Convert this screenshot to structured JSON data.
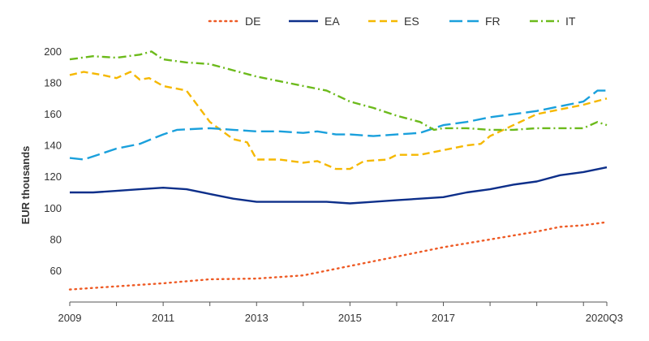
{
  "chart_data": {
    "type": "line",
    "title": "",
    "xlabel": "",
    "ylabel": "EUR thousands",
    "xlim": [
      2009,
      2020.5
    ],
    "ylim": [
      40,
      208
    ],
    "yticks": [
      60,
      80,
      100,
      120,
      140,
      160,
      180,
      200
    ],
    "xticks": [
      {
        "value": 2009,
        "label": "2009"
      },
      {
        "value": 2011,
        "label": "2011"
      },
      {
        "value": 2013,
        "label": "2013"
      },
      {
        "value": 2015,
        "label": "2015"
      },
      {
        "value": 2017,
        "label": "2017"
      },
      {
        "value": 2020.5,
        "label": "2020Q3"
      }
    ],
    "grid": false,
    "legend_position": "top",
    "series": [
      {
        "name": "DE",
        "color": "#ee5a24",
        "dash": "dotted",
        "points": [
          [
            2009,
            48
          ],
          [
            2010,
            50
          ],
          [
            2011,
            52
          ],
          [
            2012,
            54.5
          ],
          [
            2013,
            55
          ],
          [
            2014,
            57
          ],
          [
            2015,
            63
          ],
          [
            2016,
            69
          ],
          [
            2017,
            75
          ],
          [
            2018,
            80
          ],
          [
            2019,
            85
          ],
          [
            2019.5,
            88
          ],
          [
            2020,
            89
          ],
          [
            2020.5,
            91
          ]
        ]
      },
      {
        "name": "EA",
        "color": "#0d2f8a",
        "dash": "solid",
        "points": [
          [
            2009,
            110
          ],
          [
            2009.5,
            110
          ],
          [
            2010,
            111
          ],
          [
            2010.5,
            112
          ],
          [
            2011,
            113
          ],
          [
            2011.5,
            112
          ],
          [
            2012,
            109
          ],
          [
            2012.5,
            106
          ],
          [
            2013,
            104
          ],
          [
            2013.5,
            104
          ],
          [
            2014,
            104
          ],
          [
            2014.5,
            104
          ],
          [
            2015,
            103
          ],
          [
            2015.5,
            104
          ],
          [
            2016,
            105
          ],
          [
            2016.5,
            106
          ],
          [
            2017,
            107
          ],
          [
            2017.5,
            110
          ],
          [
            2018,
            112
          ],
          [
            2018.5,
            115
          ],
          [
            2019,
            117
          ],
          [
            2019.5,
            121
          ],
          [
            2020,
            123
          ],
          [
            2020.5,
            126
          ]
        ]
      },
      {
        "name": "ES",
        "color": "#f5b800",
        "dash": "dashed",
        "points": [
          [
            2009,
            185
          ],
          [
            2009.3,
            187
          ],
          [
            2009.7,
            185
          ],
          [
            2010,
            183
          ],
          [
            2010.3,
            187
          ],
          [
            2010.5,
            182
          ],
          [
            2010.7,
            183
          ],
          [
            2011,
            178
          ],
          [
            2011.5,
            175
          ],
          [
            2012,
            155
          ],
          [
            2012.5,
            144
          ],
          [
            2012.8,
            142
          ],
          [
            2013,
            131
          ],
          [
            2013.5,
            131
          ],
          [
            2014,
            129
          ],
          [
            2014.3,
            130
          ],
          [
            2014.7,
            125
          ],
          [
            2015,
            125
          ],
          [
            2015.3,
            130
          ],
          [
            2015.8,
            131
          ],
          [
            2016,
            134
          ],
          [
            2016.5,
            134
          ],
          [
            2017,
            137
          ],
          [
            2017.5,
            140
          ],
          [
            2017.8,
            141
          ],
          [
            2018,
            146
          ],
          [
            2018.5,
            153
          ],
          [
            2019,
            160
          ],
          [
            2019.5,
            163
          ],
          [
            2020,
            166
          ],
          [
            2020.5,
            170
          ]
        ]
      },
      {
        "name": "FR",
        "color": "#1aa0dc",
        "dash": "longdash",
        "points": [
          [
            2009,
            132
          ],
          [
            2009.3,
            131
          ],
          [
            2009.7,
            135
          ],
          [
            2010,
            138
          ],
          [
            2010.5,
            141
          ],
          [
            2011,
            147
          ],
          [
            2011.3,
            150
          ],
          [
            2012,
            151
          ],
          [
            2012.5,
            150
          ],
          [
            2013,
            149
          ],
          [
            2013.5,
            149
          ],
          [
            2014,
            148
          ],
          [
            2014.3,
            149
          ],
          [
            2014.7,
            147
          ],
          [
            2015,
            147
          ],
          [
            2015.5,
            146
          ],
          [
            2016,
            147
          ],
          [
            2016.5,
            148
          ],
          [
            2017,
            153
          ],
          [
            2017.5,
            155
          ],
          [
            2018,
            158
          ],
          [
            2018.5,
            160
          ],
          [
            2019,
            162
          ],
          [
            2019.5,
            165
          ],
          [
            2020,
            168
          ],
          [
            2020.3,
            175
          ],
          [
            2020.5,
            175
          ]
        ]
      },
      {
        "name": "IT",
        "color": "#6cba1b",
        "dash": "dashdot",
        "points": [
          [
            2009,
            195
          ],
          [
            2009.5,
            197
          ],
          [
            2010,
            196
          ],
          [
            2010.5,
            198
          ],
          [
            2010.75,
            200
          ],
          [
            2011,
            195
          ],
          [
            2011.5,
            193
          ],
          [
            2012,
            192
          ],
          [
            2012.5,
            188
          ],
          [
            2013,
            184
          ],
          [
            2013.5,
            181
          ],
          [
            2014,
            178
          ],
          [
            2014.5,
            175
          ],
          [
            2015,
            168
          ],
          [
            2015.5,
            164
          ],
          [
            2016,
            159
          ],
          [
            2016.5,
            155
          ],
          [
            2016.8,
            150
          ],
          [
            2017,
            151
          ],
          [
            2017.5,
            151
          ],
          [
            2018,
            150
          ],
          [
            2018.5,
            150
          ],
          [
            2019,
            151
          ],
          [
            2019.5,
            151
          ],
          [
            2020,
            151
          ],
          [
            2020.3,
            155
          ],
          [
            2020.5,
            153
          ]
        ]
      }
    ]
  }
}
